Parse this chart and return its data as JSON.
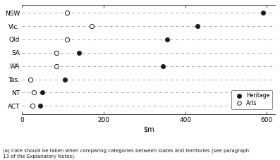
{
  "states": [
    "NSW",
    "Vic.",
    "Qld",
    "SA",
    "WA",
    "Tas.",
    "NT",
    "ACT"
  ],
  "heritage": [
    590,
    430,
    355,
    140,
    345,
    105,
    50,
    45
  ],
  "arts": [
    110,
    170,
    110,
    85,
    85,
    20,
    30,
    25
  ],
  "xlim": [
    0,
    620
  ],
  "xticks": [
    0,
    200,
    400,
    600
  ],
  "footnote": "(a) Care should be taken when comparing categories between states and territories (see paragraph\n13 of the Explanatory Notes).",
  "legend_heritage": "Heritage",
  "legend_arts": "Arts",
  "bg_color": "#ffffff",
  "dot_color": "#1a1a1a",
  "dash_color": "#aaaaaa",
  "marker_size": 4.5,
  "marker_size_open": 4.5
}
